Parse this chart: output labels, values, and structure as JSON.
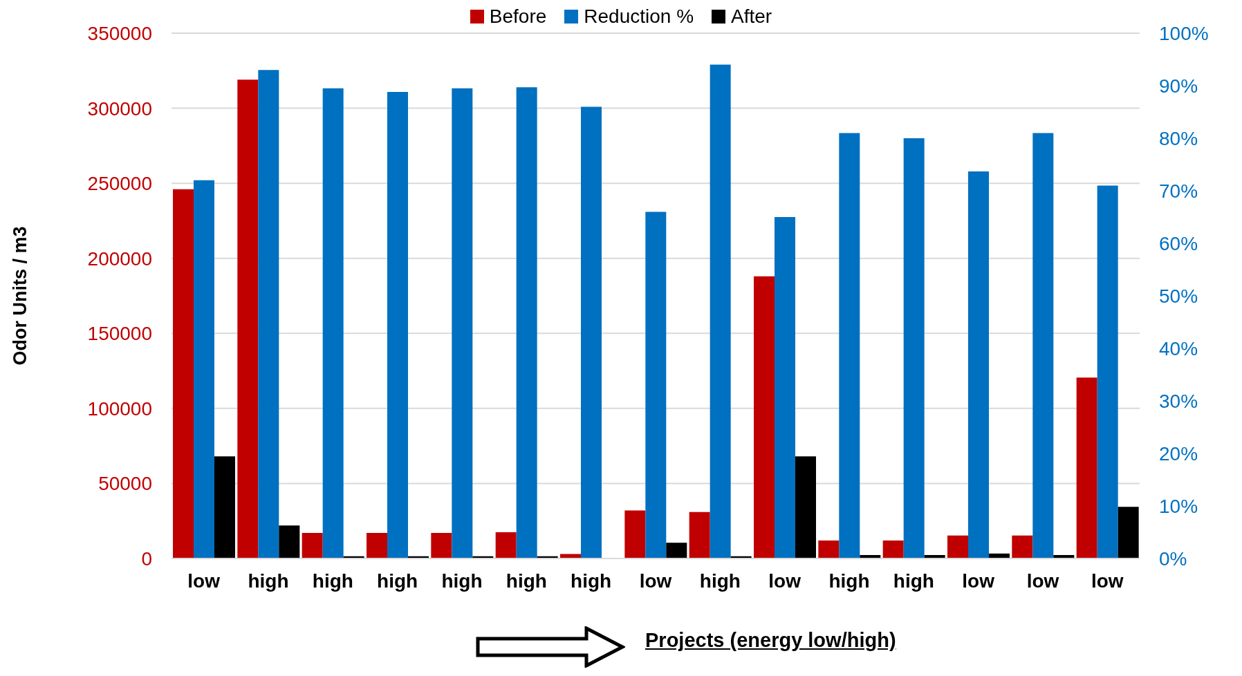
{
  "chart_data": {
    "type": "bar",
    "ylabel": "Odor Units / m3",
    "xlabel": "Projects (energy low/high)",
    "categories": [
      "low",
      "high",
      "high",
      "high",
      "high",
      "high",
      "high",
      "low",
      "high",
      "low",
      "high",
      "high",
      "low",
      "low",
      "low"
    ],
    "series": [
      {
        "name": "Before",
        "color": "#c00000",
        "values": [
          246000,
          319000,
          17000,
          17000,
          17000,
          17500,
          3000,
          32000,
          31000,
          188000,
          12000,
          12000,
          15300,
          15300,
          120500
        ]
      },
      {
        "name": "Reduction %",
        "color": "#0070c0",
        "axis": "y2",
        "values": [
          72,
          93,
          89.5,
          88.8,
          89.5,
          89.7,
          86,
          66,
          94,
          65,
          81,
          80,
          73.7,
          81,
          71
        ]
      },
      {
        "name": "After",
        "color": "#000000",
        "values": [
          68000,
          22000,
          1500,
          1500,
          1500,
          1500,
          null,
          10500,
          1500,
          68000,
          2300,
          2300,
          3300,
          2300,
          34400
        ]
      }
    ],
    "ylim": [
      0,
      350000
    ],
    "yticks": [
      0,
      50000,
      100000,
      150000,
      200000,
      250000,
      300000,
      350000
    ],
    "y2lim": [
      0,
      100
    ],
    "y2ticks": [
      {
        "value": 0,
        "label": "0%"
      },
      {
        "value": 10,
        "label": "10%"
      },
      {
        "value": 20,
        "label": "20%"
      },
      {
        "value": 30,
        "label": "30%"
      },
      {
        "value": 40,
        "label": "40%"
      },
      {
        "value": 50,
        "label": "50%"
      },
      {
        "value": 60,
        "label": "60%"
      },
      {
        "value": 70,
        "label": "70%"
      },
      {
        "value": 80,
        "label": "80%"
      },
      {
        "value": 90,
        "label": "90%"
      },
      {
        "value": 100,
        "label": "100%"
      }
    ],
    "grid": "y",
    "legend": "top"
  }
}
